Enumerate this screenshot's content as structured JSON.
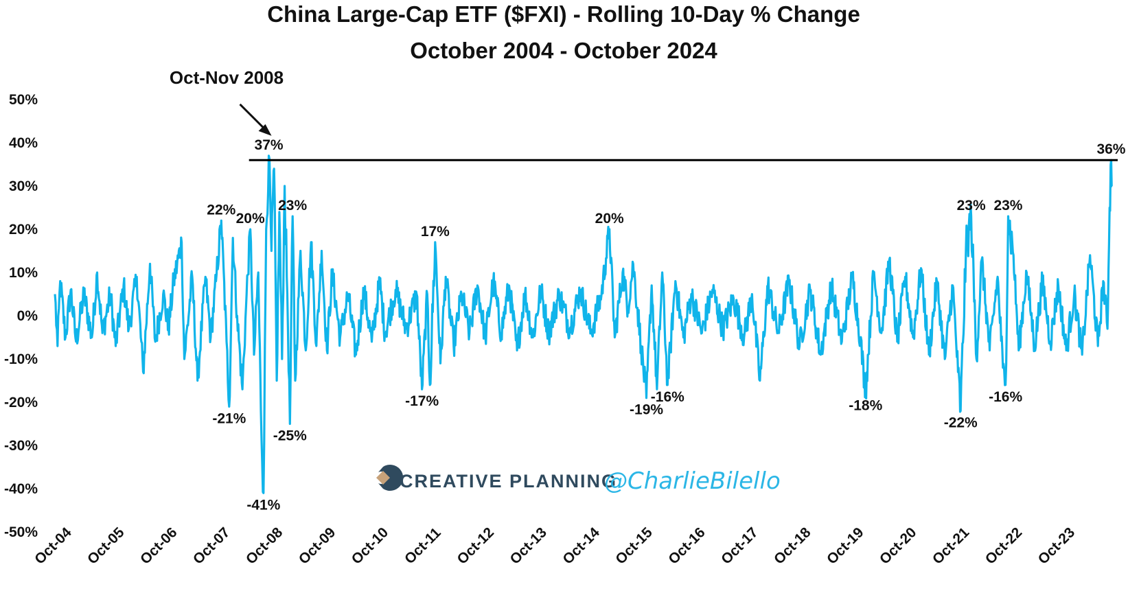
{
  "chart_data": {
    "type": "line",
    "title": "China Large-Cap ETF ($FXI) - Rolling 10-Day % Change",
    "subtitle": "October 2004 - October 2024",
    "y_ticks": [
      "50%",
      "40%",
      "30%",
      "20%",
      "10%",
      "0%",
      "-10%",
      "-20%",
      "-30%",
      "-40%",
      "-50%"
    ],
    "ylim": [
      -50,
      50
    ],
    "xlim": [
      2004.75,
      2024.77
    ],
    "x_ticks": [
      "Oct-04",
      "Oct-05",
      "Oct-06",
      "Oct-07",
      "Oct-08",
      "Oct-09",
      "Oct-10",
      "Oct-11",
      "Oct-12",
      "Oct-13",
      "Oct-14",
      "Oct-15",
      "Oct-16",
      "Oct-17",
      "Oct-18",
      "Oct-19",
      "Oct-20",
      "Oct-21",
      "Oct-22",
      "Oct-23"
    ],
    "series_color": "#10b4ea",
    "reference_line": {
      "value": 36,
      "from_x": 2008.75,
      "color": "#000000"
    },
    "callout": {
      "text": "Oct-Nov 2008",
      "points_to": [
        2008.8,
        37
      ]
    },
    "data_labels": [
      {
        "x": 2008.8,
        "y": 37,
        "text": "37%",
        "pos": "above"
      },
      {
        "x": 2024.75,
        "y": 36,
        "text": "36%",
        "pos": "above"
      },
      {
        "x": 2007.9,
        "y": 22,
        "text": "22%",
        "pos": "above"
      },
      {
        "x": 2008.45,
        "y": 20,
        "text": "20%",
        "pos": "above"
      },
      {
        "x": 2009.25,
        "y": 23,
        "text": "23%",
        "pos": "above"
      },
      {
        "x": 2011.95,
        "y": 17,
        "text": "17%",
        "pos": "above"
      },
      {
        "x": 2015.25,
        "y": 20,
        "text": "20%",
        "pos": "above"
      },
      {
        "x": 2022.1,
        "y": 23,
        "text": "23%",
        "pos": "above"
      },
      {
        "x": 2022.8,
        "y": 23,
        "text": "23%",
        "pos": "above"
      },
      {
        "x": 2008.05,
        "y": -21,
        "text": "-21%",
        "pos": "below"
      },
      {
        "x": 2008.7,
        "y": -41,
        "text": "-41%",
        "pos": "below"
      },
      {
        "x": 2009.2,
        "y": -25,
        "text": "-25%",
        "pos": "below"
      },
      {
        "x": 2011.7,
        "y": -17,
        "text": "-17%",
        "pos": "below"
      },
      {
        "x": 2015.95,
        "y": -19,
        "text": "-19%",
        "pos": "below"
      },
      {
        "x": 2016.35,
        "y": -16,
        "text": "-16%",
        "pos": "below"
      },
      {
        "x": 2020.1,
        "y": -18,
        "text": "-18%",
        "pos": "below"
      },
      {
        "x": 2021.9,
        "y": -22,
        "text": "-22%",
        "pos": "below"
      },
      {
        "x": 2022.75,
        "y": -16,
        "text": "-16%",
        "pos": "below"
      }
    ],
    "anchors": [
      [
        2004.75,
        5
      ],
      [
        2004.8,
        -7
      ],
      [
        2004.85,
        8
      ],
      [
        2004.95,
        -5
      ],
      [
        2005.05,
        6
      ],
      [
        2005.15,
        -6
      ],
      [
        2005.3,
        5
      ],
      [
        2005.45,
        -5
      ],
      [
        2005.55,
        10
      ],
      [
        2005.65,
        -4
      ],
      [
        2005.8,
        5
      ],
      [
        2005.9,
        -7
      ],
      [
        2006.05,
        7
      ],
      [
        2006.15,
        -3
      ],
      [
        2006.3,
        9
      ],
      [
        2006.42,
        -13
      ],
      [
        2006.55,
        12
      ],
      [
        2006.65,
        -6
      ],
      [
        2006.8,
        5
      ],
      [
        2006.9,
        -3
      ],
      [
        2007.0,
        8
      ],
      [
        2007.15,
        17
      ],
      [
        2007.2,
        -10
      ],
      [
        2007.35,
        9
      ],
      [
        2007.45,
        -15
      ],
      [
        2007.6,
        9
      ],
      [
        2007.7,
        -5
      ],
      [
        2007.8,
        8
      ],
      [
        2007.9,
        22
      ],
      [
        2008.0,
        -6
      ],
      [
        2008.05,
        -21
      ],
      [
        2008.12,
        18
      ],
      [
        2008.2,
        0
      ],
      [
        2008.3,
        -17
      ],
      [
        2008.38,
        5
      ],
      [
        2008.45,
        20
      ],
      [
        2008.52,
        -9
      ],
      [
        2008.6,
        10
      ],
      [
        2008.65,
        -22
      ],
      [
        2008.7,
        -41
      ],
      [
        2008.75,
        20
      ],
      [
        2008.8,
        37
      ],
      [
        2008.85,
        15
      ],
      [
        2008.9,
        34
      ],
      [
        2008.95,
        -15
      ],
      [
        2009.0,
        24
      ],
      [
        2009.05,
        -10
      ],
      [
        2009.1,
        30
      ],
      [
        2009.15,
        5
      ],
      [
        2009.2,
        -25
      ],
      [
        2009.25,
        23
      ],
      [
        2009.3,
        -15
      ],
      [
        2009.4,
        15
      ],
      [
        2009.5,
        -8
      ],
      [
        2009.6,
        17
      ],
      [
        2009.7,
        -7
      ],
      [
        2009.8,
        15
      ],
      [
        2009.9,
        -8
      ],
      [
        2010.0,
        10
      ],
      [
        2010.15,
        -5
      ],
      [
        2010.3,
        5
      ],
      [
        2010.45,
        -9
      ],
      [
        2010.6,
        6
      ],
      [
        2010.75,
        -6
      ],
      [
        2010.9,
        8
      ],
      [
        2011.0,
        -4
      ],
      [
        2011.2,
        6
      ],
      [
        2011.4,
        -3
      ],
      [
        2011.6,
        5
      ],
      [
        2011.7,
        -17
      ],
      [
        2011.8,
        5
      ],
      [
        2011.85,
        -16
      ],
      [
        2011.95,
        17
      ],
      [
        2012.05,
        -11
      ],
      [
        2012.15,
        9
      ],
      [
        2012.3,
        -7
      ],
      [
        2012.45,
        5
      ],
      [
        2012.6,
        -4
      ],
      [
        2012.75,
        7
      ],
      [
        2012.9,
        -5
      ],
      [
        2013.05,
        8
      ],
      [
        2013.2,
        -4
      ],
      [
        2013.35,
        7
      ],
      [
        2013.5,
        -8
      ],
      [
        2013.65,
        5
      ],
      [
        2013.8,
        -5
      ],
      [
        2013.95,
        6
      ],
      [
        2014.1,
        -4
      ],
      [
        2014.3,
        5
      ],
      [
        2014.5,
        -3
      ],
      [
        2014.7,
        6
      ],
      [
        2014.9,
        -4
      ],
      [
        2015.1,
        5
      ],
      [
        2015.25,
        20
      ],
      [
        2015.35,
        -5
      ],
      [
        2015.5,
        10
      ],
      [
        2015.6,
        2
      ],
      [
        2015.7,
        12
      ],
      [
        2015.85,
        -7
      ],
      [
        2015.95,
        -19
      ],
      [
        2016.05,
        7
      ],
      [
        2016.15,
        -17
      ],
      [
        2016.25,
        10
      ],
      [
        2016.35,
        -16
      ],
      [
        2016.5,
        8
      ],
      [
        2016.65,
        -5
      ],
      [
        2016.8,
        5
      ],
      [
        2017.0,
        -4
      ],
      [
        2017.2,
        6
      ],
      [
        2017.4,
        -3
      ],
      [
        2017.6,
        4
      ],
      [
        2017.8,
        -5
      ],
      [
        2017.95,
        5
      ],
      [
        2018.1,
        -15
      ],
      [
        2018.25,
        7
      ],
      [
        2018.45,
        -4
      ],
      [
        2018.65,
        8
      ],
      [
        2018.85,
        -7
      ],
      [
        2019.05,
        6
      ],
      [
        2019.25,
        -9
      ],
      [
        2019.45,
        7
      ],
      [
        2019.65,
        -6
      ],
      [
        2019.85,
        9
      ],
      [
        2020.0,
        -5
      ],
      [
        2020.1,
        -18
      ],
      [
        2020.25,
        10
      ],
      [
        2020.4,
        -4
      ],
      [
        2020.55,
        13
      ],
      [
        2020.7,
        -6
      ],
      [
        2020.85,
        9
      ],
      [
        2021.0,
        -5
      ],
      [
        2021.15,
        11
      ],
      [
        2021.3,
        -9
      ],
      [
        2021.45,
        8
      ],
      [
        2021.6,
        -10
      ],
      [
        2021.75,
        7
      ],
      [
        2021.85,
        -13
      ],
      [
        2021.9,
        -22
      ],
      [
        2022.0,
        15
      ],
      [
        2022.1,
        23
      ],
      [
        2022.2,
        -10
      ],
      [
        2022.3,
        13
      ],
      [
        2022.45,
        -8
      ],
      [
        2022.6,
        9
      ],
      [
        2022.7,
        -12
      ],
      [
        2022.75,
        -16
      ],
      [
        2022.8,
        23
      ],
      [
        2022.9,
        14
      ],
      [
        2023.0,
        -8
      ],
      [
        2023.15,
        10
      ],
      [
        2023.3,
        -7
      ],
      [
        2023.45,
        8
      ],
      [
        2023.6,
        -6
      ],
      [
        2023.75,
        7
      ],
      [
        2023.9,
        -8
      ],
      [
        2024.05,
        5
      ],
      [
        2024.2,
        -9
      ],
      [
        2024.35,
        14
      ],
      [
        2024.5,
        -7
      ],
      [
        2024.6,
        8
      ],
      [
        2024.68,
        -3
      ],
      [
        2024.72,
        25
      ],
      [
        2024.75,
        36
      ],
      [
        2024.77,
        30
      ]
    ]
  },
  "branding": {
    "company": "CREATIVE PLANNING",
    "handle": "@CharlieBilello"
  }
}
